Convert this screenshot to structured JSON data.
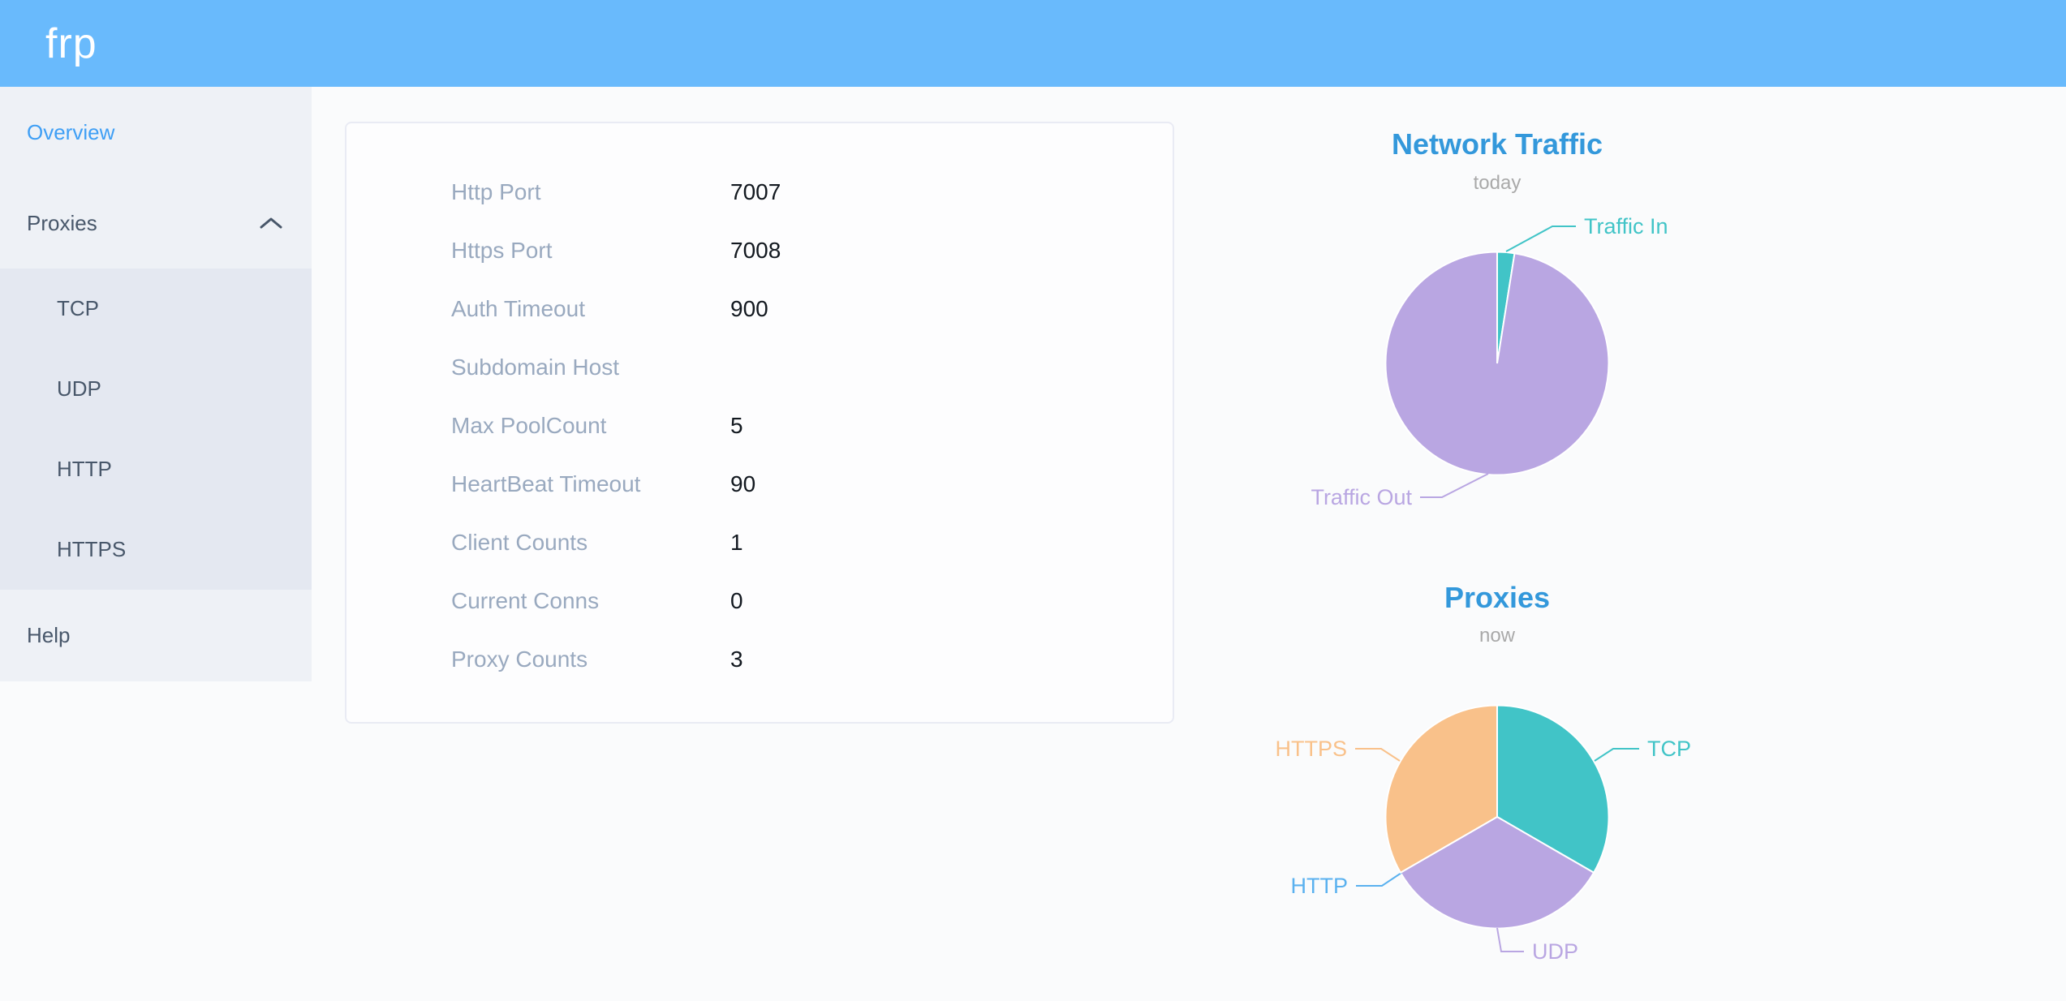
{
  "header": {
    "logo": "frp"
  },
  "sidebar": {
    "items": [
      {
        "label": "Overview",
        "active": true
      },
      {
        "label": "Proxies",
        "expanded": true
      },
      {
        "label": "Help"
      }
    ],
    "proxies_children": [
      {
        "label": "TCP"
      },
      {
        "label": "UDP"
      },
      {
        "label": "HTTP"
      },
      {
        "label": "HTTPS"
      }
    ],
    "icons": {
      "proxies_state": "chevron-up"
    }
  },
  "overview": {
    "rows": [
      {
        "label": "Http Port",
        "value": "7007"
      },
      {
        "label": "Https Port",
        "value": "7008"
      },
      {
        "label": "Auth Timeout",
        "value": "900"
      },
      {
        "label": "Subdomain Host",
        "value": ""
      },
      {
        "label": "Max PoolCount",
        "value": "5"
      },
      {
        "label": "HeartBeat Timeout",
        "value": "90"
      },
      {
        "label": "Client Counts",
        "value": "1"
      },
      {
        "label": "Current Conns",
        "value": "0"
      },
      {
        "label": "Proxy Counts",
        "value": "3"
      }
    ]
  },
  "colors": {
    "header_bg": "#69bafc",
    "sidebar_bg": "#eef1f6",
    "submenu_bg": "#e4e8f1",
    "sidebar_text": "#48576a",
    "active_item": "#3f9ff5",
    "card_label": "#99a9bf",
    "chart_title": "#3398db",
    "teal": "#41c4c7",
    "purple": "#b9a6e2",
    "http_blue": "#5ab1ef",
    "orange": "#f9c18a"
  },
  "chart_data": [
    {
      "type": "pie",
      "title": "Network Traffic",
      "subtitle": "today",
      "legend_position": "none",
      "labels": "outside with leader lines",
      "series": [
        {
          "name": "Traffic In",
          "value": 2.5,
          "unit": "% of today's traffic (estimated from arc angle)",
          "color": "#41c4c7"
        },
        {
          "name": "Traffic Out",
          "value": 97.5,
          "unit": "% of today's traffic (estimated from arc angle)",
          "color": "#b9a6e2"
        }
      ]
    },
    {
      "type": "pie",
      "title": "Proxies",
      "subtitle": "now",
      "legend_position": "none",
      "labels": "outside with leader lines",
      "series": [
        {
          "name": "TCP",
          "value": 1,
          "unit": "proxies",
          "color": "#41c4c7"
        },
        {
          "name": "UDP",
          "value": 1,
          "unit": "proxies",
          "color": "#b9a6e2"
        },
        {
          "name": "HTTP",
          "value": 0,
          "unit": "proxies",
          "color": "#5ab1ef"
        },
        {
          "name": "HTTPS",
          "value": 1,
          "unit": "proxies",
          "color": "#f9c18a"
        }
      ]
    }
  ]
}
